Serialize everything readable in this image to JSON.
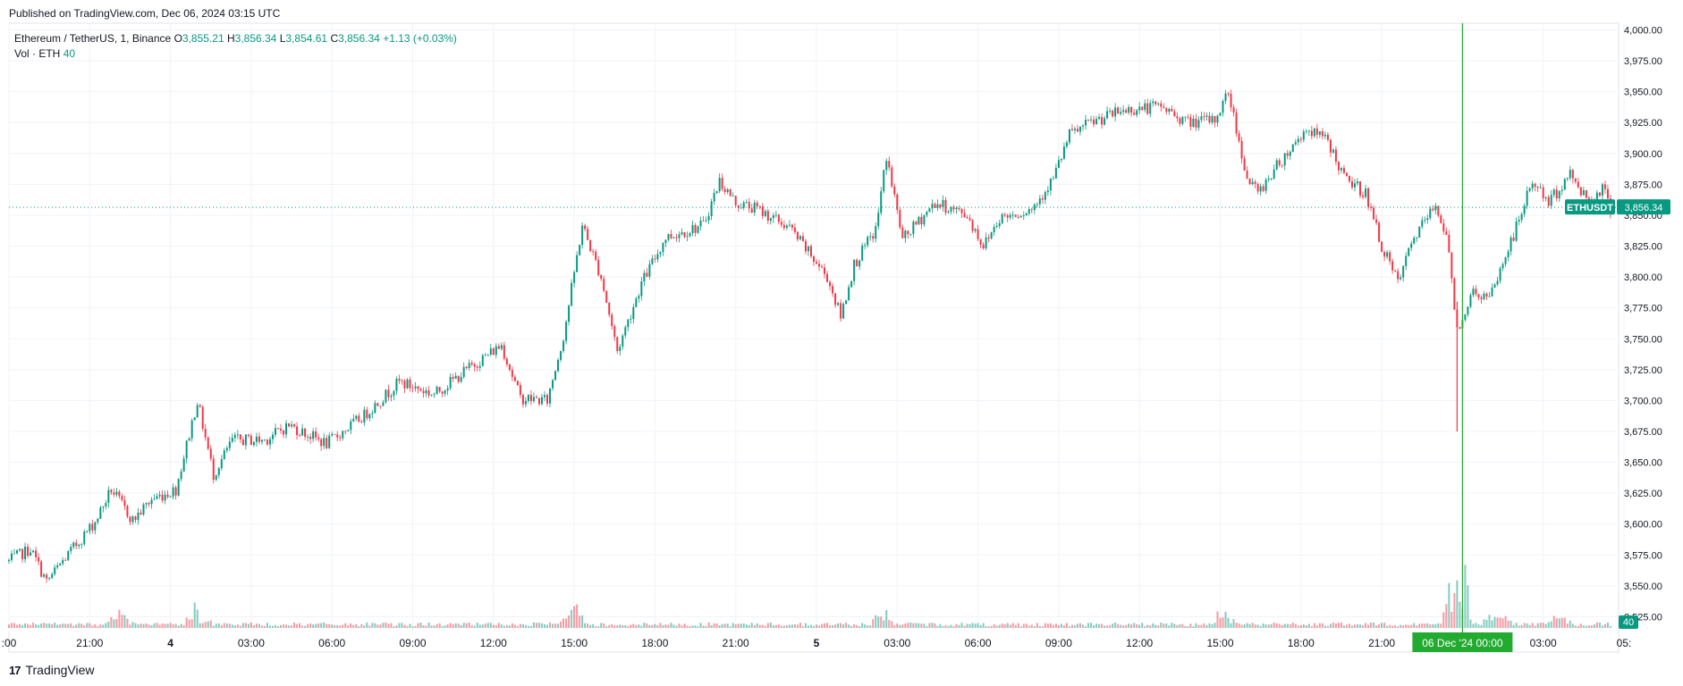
{
  "published": "Published on TradingView.com, Dec 06, 2024 03:15 UTC",
  "legend": {
    "symbol": "Ethereum / TetherUS, 1, Binance",
    "o_label": "O",
    "o": "3,855.21",
    "h_label": "H",
    "h": "3,856.34",
    "l_label": "L",
    "l": "3,854.61",
    "c_label": "C",
    "c": "3,856.34",
    "change": "+1.13 (+0.03%)",
    "vol_label": "Vol · ETH",
    "vol": "40"
  },
  "footer": {
    "logo": "17",
    "brand": "TradingView"
  },
  "colors": {
    "up": "#089981",
    "down": "#f23645",
    "grid": "#f0f3fa",
    "crosshair": "#22ab30",
    "axis_text": "#131722"
  },
  "chart_data": {
    "type": "candlestick",
    "symbol": "ETHUSDT",
    "last_price": 3856.34,
    "last_price_label": "3,856.34",
    "last_volume_label": "40",
    "crosshair_label": "06 Dec '24   00:00",
    "ylim": [
      3510,
      4000
    ],
    "y_ticks": [
      "4,000.00",
      "3,975.00",
      "3,950.00",
      "3,925.00",
      "3,900.00",
      "3,875.00",
      "3,850.00",
      "3,825.00",
      "3,800.00",
      "3,775.00",
      "3,750.00",
      "3,725.00",
      "3,700.00",
      "3,675.00",
      "3,650.00",
      "3,625.00",
      "3,600.00",
      "3,575.00",
      "3,550.00",
      "3,525.00"
    ],
    "y_tick_values": [
      4000,
      3975,
      3950,
      3925,
      3900,
      3875,
      3850,
      3825,
      3800,
      3775,
      3750,
      3725,
      3700,
      3675,
      3650,
      3625,
      3600,
      3575,
      3550,
      3525
    ],
    "x_tick_labels": [
      ":00",
      "21:00",
      "4",
      "03:00",
      "06:00",
      "09:00",
      "12:00",
      "15:00",
      "18:00",
      "21:00",
      "5",
      "03:00",
      "06:00",
      "09:00",
      "12:00",
      "15:00",
      "18:00",
      "21:00",
      "03:00",
      "05:"
    ],
    "x_tick_hours": [
      18,
      21,
      24,
      27,
      30,
      33,
      36,
      39,
      42,
      45,
      48,
      51,
      54,
      57,
      60,
      63,
      66,
      69,
      75,
      78
    ],
    "x_start_hour": 18,
    "crosshair_hour": 72,
    "price_path": [
      [
        18.0,
        3570
      ],
      [
        18.8,
        3580
      ],
      [
        19.4,
        3553
      ],
      [
        20.0,
        3570
      ],
      [
        21.2,
        3602
      ],
      [
        21.8,
        3628
      ],
      [
        22.6,
        3603
      ],
      [
        23.3,
        3620
      ],
      [
        24.2,
        3628
      ],
      [
        25.0,
        3700
      ],
      [
        25.6,
        3640
      ],
      [
        26.3,
        3668
      ],
      [
        27.5,
        3668
      ],
      [
        28.4,
        3680
      ],
      [
        29.8,
        3665
      ],
      [
        31.2,
        3688
      ],
      [
        32.5,
        3715
      ],
      [
        33.8,
        3705
      ],
      [
        35.2,
        3728
      ],
      [
        36.3,
        3745
      ],
      [
        37.0,
        3702
      ],
      [
        38.0,
        3700
      ],
      [
        38.6,
        3752
      ],
      [
        39.3,
        3842
      ],
      [
        40.0,
        3800
      ],
      [
        40.6,
        3740
      ],
      [
        41.5,
        3795
      ],
      [
        42.4,
        3832
      ],
      [
        43.8,
        3842
      ],
      [
        44.4,
        3878
      ],
      [
        45.0,
        3860
      ],
      [
        45.8,
        3855
      ],
      [
        47.0,
        3840
      ],
      [
        48.4,
        3800
      ],
      [
        48.9,
        3768
      ],
      [
        49.4,
        3810
      ],
      [
        50.2,
        3838
      ],
      [
        50.6,
        3898
      ],
      [
        51.2,
        3830
      ],
      [
        52.4,
        3860
      ],
      [
        53.6,
        3850
      ],
      [
        54.2,
        3825
      ],
      [
        54.8,
        3848
      ],
      [
        56.0,
        3855
      ],
      [
        56.8,
        3880
      ],
      [
        57.4,
        3915
      ],
      [
        58.2,
        3925
      ],
      [
        59.4,
        3935
      ],
      [
        60.8,
        3938
      ],
      [
        61.8,
        3925
      ],
      [
        62.8,
        3927
      ],
      [
        63.3,
        3950
      ],
      [
        64.0,
        3880
      ],
      [
        64.4,
        3868
      ],
      [
        65.0,
        3887
      ],
      [
        66.2,
        3920
      ],
      [
        67.0,
        3910
      ],
      [
        67.6,
        3880
      ],
      [
        68.4,
        3868
      ],
      [
        69.0,
        3825
      ],
      [
        69.6,
        3795
      ],
      [
        70.2,
        3832
      ],
      [
        71.0,
        3858
      ],
      [
        71.4,
        3835
      ],
      [
        71.8,
        3758
      ],
      [
        72.4,
        3788
      ],
      [
        73.0,
        3782
      ],
      [
        73.4,
        3805
      ],
      [
        74.0,
        3840
      ],
      [
        74.6,
        3878
      ],
      [
        75.2,
        3860
      ],
      [
        76.0,
        3883
      ],
      [
        76.7,
        3862
      ],
      [
        77.2,
        3873
      ],
      [
        77.5,
        3856
      ]
    ],
    "volume_spikes": [
      [
        22.1,
        25
      ],
      [
        25.0,
        38
      ],
      [
        39.0,
        45
      ],
      [
        50.5,
        30
      ],
      [
        63.2,
        40
      ],
      [
        71.8,
        135
      ],
      [
        71.95,
        55
      ],
      [
        73.3,
        35
      ],
      [
        75.5,
        30
      ]
    ],
    "volume_baseline": 8,
    "volume_axis_max": 160
  }
}
